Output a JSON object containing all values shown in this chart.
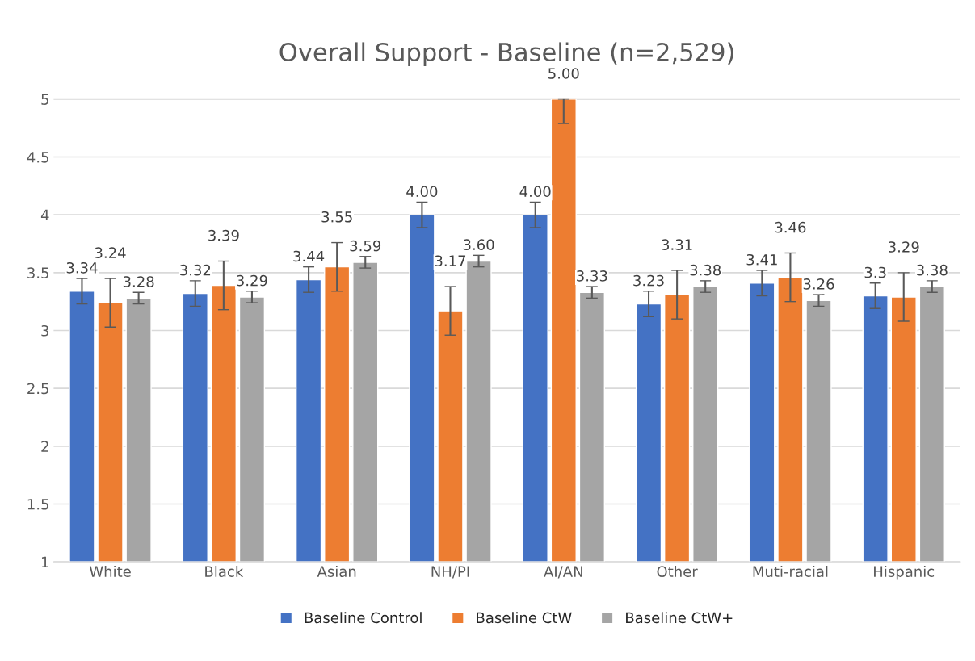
{
  "chart_data": {
    "type": "bar",
    "title": "Overall Support - Baseline (n=2,529)",
    "categories": [
      "White",
      "Black",
      "Asian",
      "NH/PI",
      "AI/AN",
      "Other",
      "Muti-racial",
      "Hispanic"
    ],
    "series": [
      {
        "name": "Baseline Control",
        "color": "#4472c4",
        "values": [
          3.34,
          3.32,
          3.44,
          4.0,
          4.0,
          3.23,
          3.41,
          3.3
        ],
        "errors": [
          0.11,
          0.11,
          0.11,
          0.11,
          0.11,
          0.11,
          0.11,
          0.11
        ],
        "value_labels": [
          "3.34",
          "3.32",
          "3.44",
          "4.00",
          "4.00",
          "3.23",
          "3.41",
          "3.3"
        ]
      },
      {
        "name": "Baseline CtW",
        "color": "#ed7d31",
        "values": [
          3.24,
          3.39,
          3.55,
          3.17,
          5.0,
          3.31,
          3.46,
          3.29
        ],
        "errors": [
          0.21,
          0.21,
          0.21,
          0.21,
          [
            4.79,
            5.0
          ],
          0.21,
          0.21,
          0.21
        ],
        "value_labels": [
          "3.24",
          "3.39",
          "3.55",
          "3.17",
          "5.00",
          "3.31",
          "3.46",
          "3.29"
        ]
      },
      {
        "name": "Baseline CtW+",
        "color": "#a5a5a5",
        "values": [
          3.28,
          3.29,
          3.59,
          3.6,
          3.33,
          3.38,
          3.26,
          3.38
        ],
        "errors": [
          0.05,
          0.05,
          0.05,
          0.05,
          0.05,
          0.05,
          0.05,
          0.05
        ],
        "value_labels": [
          "3.28",
          "3.29",
          "3.59",
          "3.60",
          "3.33",
          "3.38",
          "3.26",
          "3.38"
        ]
      }
    ],
    "ylim": [
      1,
      5
    ],
    "yticks": [
      1,
      1.5,
      2,
      2.5,
      3,
      3.5,
      4,
      4.5,
      5
    ],
    "grid": "y",
    "legend": "bottom"
  }
}
